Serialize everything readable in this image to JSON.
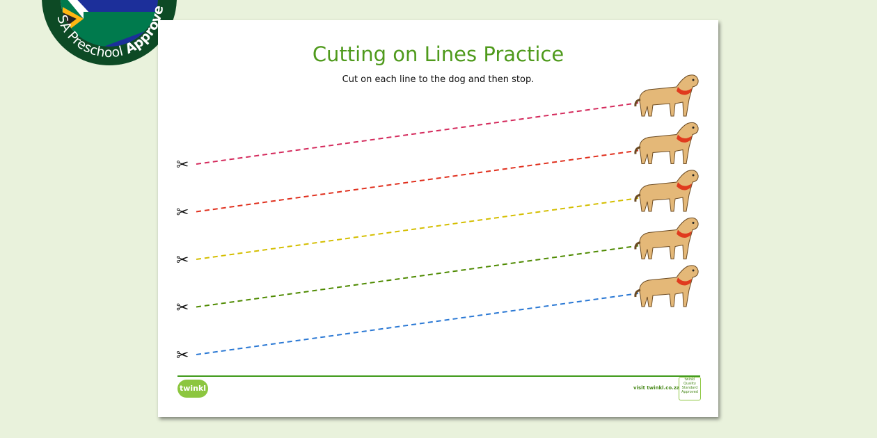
{
  "badge": {
    "text_regular": "SA Preschool ",
    "text_bold": "Approved"
  },
  "worksheet": {
    "title": "Cutting on Lines Practice",
    "instruction": "Cut on each line to the dog and then stop.",
    "lines": [
      {
        "color": "#d42a5c",
        "icon": "scissors-icon",
        "target_icon": "dog-icon"
      },
      {
        "color": "#e0301e",
        "icon": "scissors-icon",
        "target_icon": "dog-icon"
      },
      {
        "color": "#d4be00",
        "icon": "scissors-icon",
        "target_icon": "dog-icon"
      },
      {
        "color": "#4e8a00",
        "icon": "scissors-icon",
        "target_icon": "dog-icon"
      },
      {
        "color": "#2a78d4",
        "icon": "scissors-icon",
        "target_icon": "dog-icon"
      }
    ]
  },
  "footer": {
    "logo": "twinkl",
    "website": "visit twinkl.co.za",
    "approved_logo": "twinkl Quality Standard Approved",
    "accent": "#3f9a1a"
  }
}
